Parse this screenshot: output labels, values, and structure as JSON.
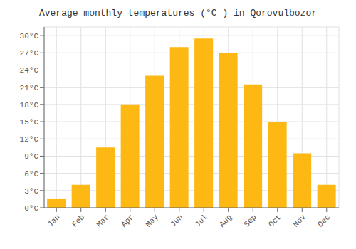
{
  "chart_data": {
    "type": "bar",
    "title": "Average monthly temperatures (°C ) in Qorovulbozor",
    "categories": [
      "Jan",
      "Feb",
      "Mar",
      "Apr",
      "May",
      "Jun",
      "Jul",
      "Aug",
      "Sep",
      "Oct",
      "Nov",
      "Dec"
    ],
    "values": [
      1.5,
      4.0,
      10.5,
      18.0,
      23.0,
      28.0,
      29.5,
      27.0,
      21.5,
      15.0,
      9.5,
      4.0
    ],
    "color": "#FDB813",
    "ylim": [
      0,
      31.5
    ],
    "yticks": [
      {
        "value": 0,
        "label": "0°C"
      },
      {
        "value": 3,
        "label": "3°C"
      },
      {
        "value": 6,
        "label": "6°C"
      },
      {
        "value": 9,
        "label": "9°C"
      },
      {
        "value": 12,
        "label": "12°C"
      },
      {
        "value": 15,
        "label": "15°C"
      },
      {
        "value": 18,
        "label": "18°C"
      },
      {
        "value": 21,
        "label": "21°C"
      },
      {
        "value": 24,
        "label": "24°C"
      },
      {
        "value": 27,
        "label": "27°C"
      },
      {
        "value": 30,
        "label": "30°C"
      }
    ],
    "grid": true
  }
}
